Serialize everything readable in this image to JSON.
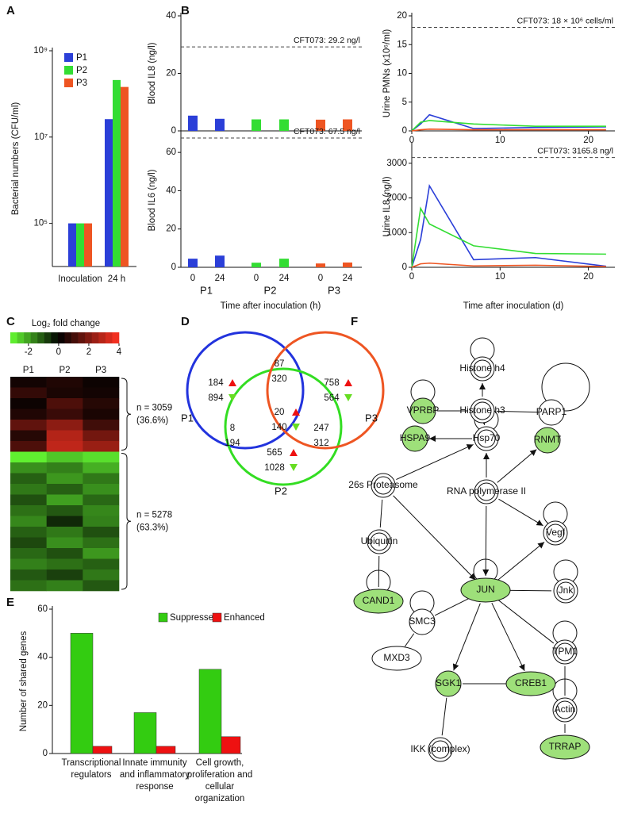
{
  "panel_labels": [
    "A",
    "B",
    "C",
    "D",
    "E",
    "F"
  ],
  "chart_data": [
    {
      "type": "bar",
      "log": true,
      "ylabel": "Bacterial numbers (CFU/ml)",
      "categories": [
        "Inoculation",
        "24 h"
      ],
      "series": [
        {
          "name": "P1",
          "color": "#2b3fd8",
          "values": [
            100000,
            26000000
          ]
        },
        {
          "name": "P2",
          "color": "#33dd33",
          "values": [
            100000,
            210000000
          ]
        },
        {
          "name": "P3",
          "color": "#ee5522",
          "values": [
            100000,
            145000000
          ]
        }
      ],
      "ylim": [
        10000,
        1000000000
      ],
      "yticks": [
        {
          "value": 100000,
          "label": "10⁵"
        },
        {
          "value": 10000000,
          "label": "10⁷"
        },
        {
          "value": 1000000000,
          "label": "10⁹"
        }
      ]
    },
    {
      "type": "bar",
      "ylabel": "Blood IL8 (ng/l)",
      "values": [
        5.3,
        4.2,
        4.0,
        4.0,
        3.9,
        4.0
      ],
      "colors": [
        "#2b3fd8",
        "#2b3fd8",
        "#33dd33",
        "#33dd33",
        "#ee5522",
        "#ee5522"
      ],
      "ylim": [
        0,
        40
      ],
      "yticks": [
        0,
        20,
        40
      ],
      "reference_line": {
        "value": 29.2,
        "label": "CFT073: 29.2 ng/l"
      }
    },
    {
      "type": "bar",
      "ylabel": "Blood IL6 (ng/l)",
      "xlabel": "Time after inoculation (h)",
      "categories": [
        "0",
        "24",
        "0",
        "24",
        "0",
        "24"
      ],
      "groups": [
        "P1",
        "P2",
        "P3"
      ],
      "values": [
        4.5,
        6.1,
        2.4,
        4.5,
        2.0,
        2.5
      ],
      "colors": [
        "#2b3fd8",
        "#2b3fd8",
        "#33dd33",
        "#33dd33",
        "#ee5522",
        "#ee5522"
      ],
      "ylim": [
        0,
        70
      ],
      "yticks": [
        0,
        20,
        40,
        60
      ],
      "reference_line": {
        "value": 67.5,
        "label": "CFT073: 67.5 ng/l"
      }
    },
    {
      "type": "line",
      "ylabel": "Urine PMNs (x10⁶/ml)",
      "x": [
        0,
        1,
        2,
        7,
        14,
        22
      ],
      "series": [
        {
          "name": "P1",
          "color": "#2b3fd8",
          "values": [
            0,
            1.2,
            2.8,
            0.4,
            0.6,
            0.7
          ]
        },
        {
          "name": "P2",
          "color": "#33dd33",
          "values": [
            0,
            1.5,
            1.8,
            1.2,
            0.8,
            0.8
          ]
        },
        {
          "name": "P3",
          "color": "#ee5522",
          "values": [
            0,
            0.2,
            0.3,
            0.2,
            0.2,
            0.2
          ]
        }
      ],
      "xlim": [
        0,
        23
      ],
      "xticks": [
        0,
        10,
        20
      ],
      "ylim": [
        0,
        20
      ],
      "yticks": [
        0,
        5,
        10,
        15,
        20
      ],
      "reference_line": {
        "value": 18,
        "label": "CFT073: 18 × 10⁶ cells/ml"
      }
    },
    {
      "type": "line",
      "ylabel": "Urine IL8 (ng/l)",
      "xlabel": "Time after inoculation (d)",
      "x": [
        0,
        1,
        2,
        7,
        14,
        22
      ],
      "series": [
        {
          "name": "P1",
          "color": "#2b3fd8",
          "values": [
            0,
            800,
            2350,
            220,
            280,
            30
          ]
        },
        {
          "name": "P2",
          "color": "#33dd33",
          "values": [
            0,
            1700,
            1250,
            620,
            400,
            380
          ]
        },
        {
          "name": "P3",
          "color": "#ee5522",
          "values": [
            0,
            100,
            120,
            40,
            60,
            20
          ]
        }
      ],
      "xlim": [
        0,
        23
      ],
      "xticks": [
        0,
        10,
        20
      ],
      "ylim": [
        0,
        3500
      ],
      "yticks": [
        0,
        1000,
        2000,
        3000
      ],
      "reference_line": {
        "value": 3165.8,
        "label": "CFT073: 3165.8 ng/l"
      }
    },
    {
      "type": "heatmap",
      "colorbar_label": "Log₂ fold change",
      "columns": [
        "P1",
        "P2",
        "P3"
      ],
      "clim": [
        -3.2,
        4
      ],
      "cticks": [
        -2,
        0,
        2,
        4
      ],
      "colors": [
        "#66ff33",
        "#000000",
        "#ff3322"
      ],
      "values": [
        [
          0.3,
          0.5,
          0.2
        ],
        [
          0.8,
          0.4,
          0.3
        ],
        [
          0.2,
          1.2,
          0.6
        ],
        [
          0.5,
          0.9,
          0.4
        ],
        [
          1.5,
          2.2,
          1.0
        ],
        [
          0.6,
          2.8,
          1.8
        ],
        [
          1.2,
          3.0,
          2.4
        ],
        [
          -3.0,
          -2.5,
          -2.8
        ],
        [
          -1.8,
          -1.6,
          -2.2
        ],
        [
          -1.2,
          -1.9,
          -1.5
        ],
        [
          -1.5,
          -1.2,
          -1.8
        ],
        [
          -1.0,
          -2.0,
          -1.3
        ],
        [
          -1.4,
          -1.1,
          -1.7
        ],
        [
          -1.7,
          -0.5,
          -1.6
        ],
        [
          -1.2,
          -1.5,
          -1.0
        ],
        [
          -0.9,
          -1.8,
          -1.4
        ],
        [
          -1.3,
          -1.0,
          -1.9
        ],
        [
          -1.6,
          -1.4,
          -1.2
        ],
        [
          -1.1,
          -0.8,
          -1.5
        ],
        [
          -1.4,
          -1.6,
          -1.1
        ]
      ],
      "clusters": [
        {
          "label": "n = 3059",
          "share": "(36.6%)"
        },
        {
          "label": "n = 5278",
          "share": "(63.3%)"
        }
      ]
    },
    {
      "type": "grouped_bar",
      "ylabel": "Number of shared genes",
      "categories": [
        "Transcriptional regulators",
        "Innate immunity and inflammatory response",
        "Cell growth, proliferation and cellular organization"
      ],
      "series": [
        {
          "name": "Suppressed",
          "color": "#33cc11",
          "values": [
            50,
            17,
            35
          ]
        },
        {
          "name": "Enhanced",
          "color": "#ee1111",
          "values": [
            3,
            3,
            7
          ]
        }
      ],
      "ylim": [
        0,
        60
      ],
      "yticks": [
        0,
        20,
        40,
        60
      ]
    }
  ],
  "venn": {
    "sets": [
      "P1",
      "P2",
      "P3"
    ],
    "regions": [
      {
        "up": 184,
        "down": 894
      },
      {
        "up": 87,
        "down": 320
      },
      {
        "up": 758,
        "down": 564
      },
      {
        "up": 20,
        "down": 140
      },
      {
        "up": 8,
        "down": 194
      },
      {
        "up": 247,
        "down": 312
      },
      {
        "up": 565,
        "down": 1028
      }
    ]
  },
  "network": {
    "nodes": [
      {
        "label": "Histone h4"
      },
      {
        "label": "Histone h3"
      },
      {
        "label": "VPRBP"
      },
      {
        "label": "PARP1"
      },
      {
        "label": "Hsp70"
      },
      {
        "label": "HSPA9"
      },
      {
        "label": "RNMT"
      },
      {
        "label": "26s Proteasome"
      },
      {
        "label": "RNA polymerase II"
      },
      {
        "label": "Ubiquitin"
      },
      {
        "label": "Vegf"
      },
      {
        "label": "CAND1"
      },
      {
        "label": "JUN"
      },
      {
        "label": "Jnk"
      },
      {
        "label": "SMC3"
      },
      {
        "label": "MXD3"
      },
      {
        "label": "SGK1"
      },
      {
        "label": "CREB1"
      },
      {
        "label": "TPM1"
      },
      {
        "label": "Actin"
      },
      {
        "label": "IKK (complex)"
      },
      {
        "label": "TRRAP"
      }
    ]
  }
}
